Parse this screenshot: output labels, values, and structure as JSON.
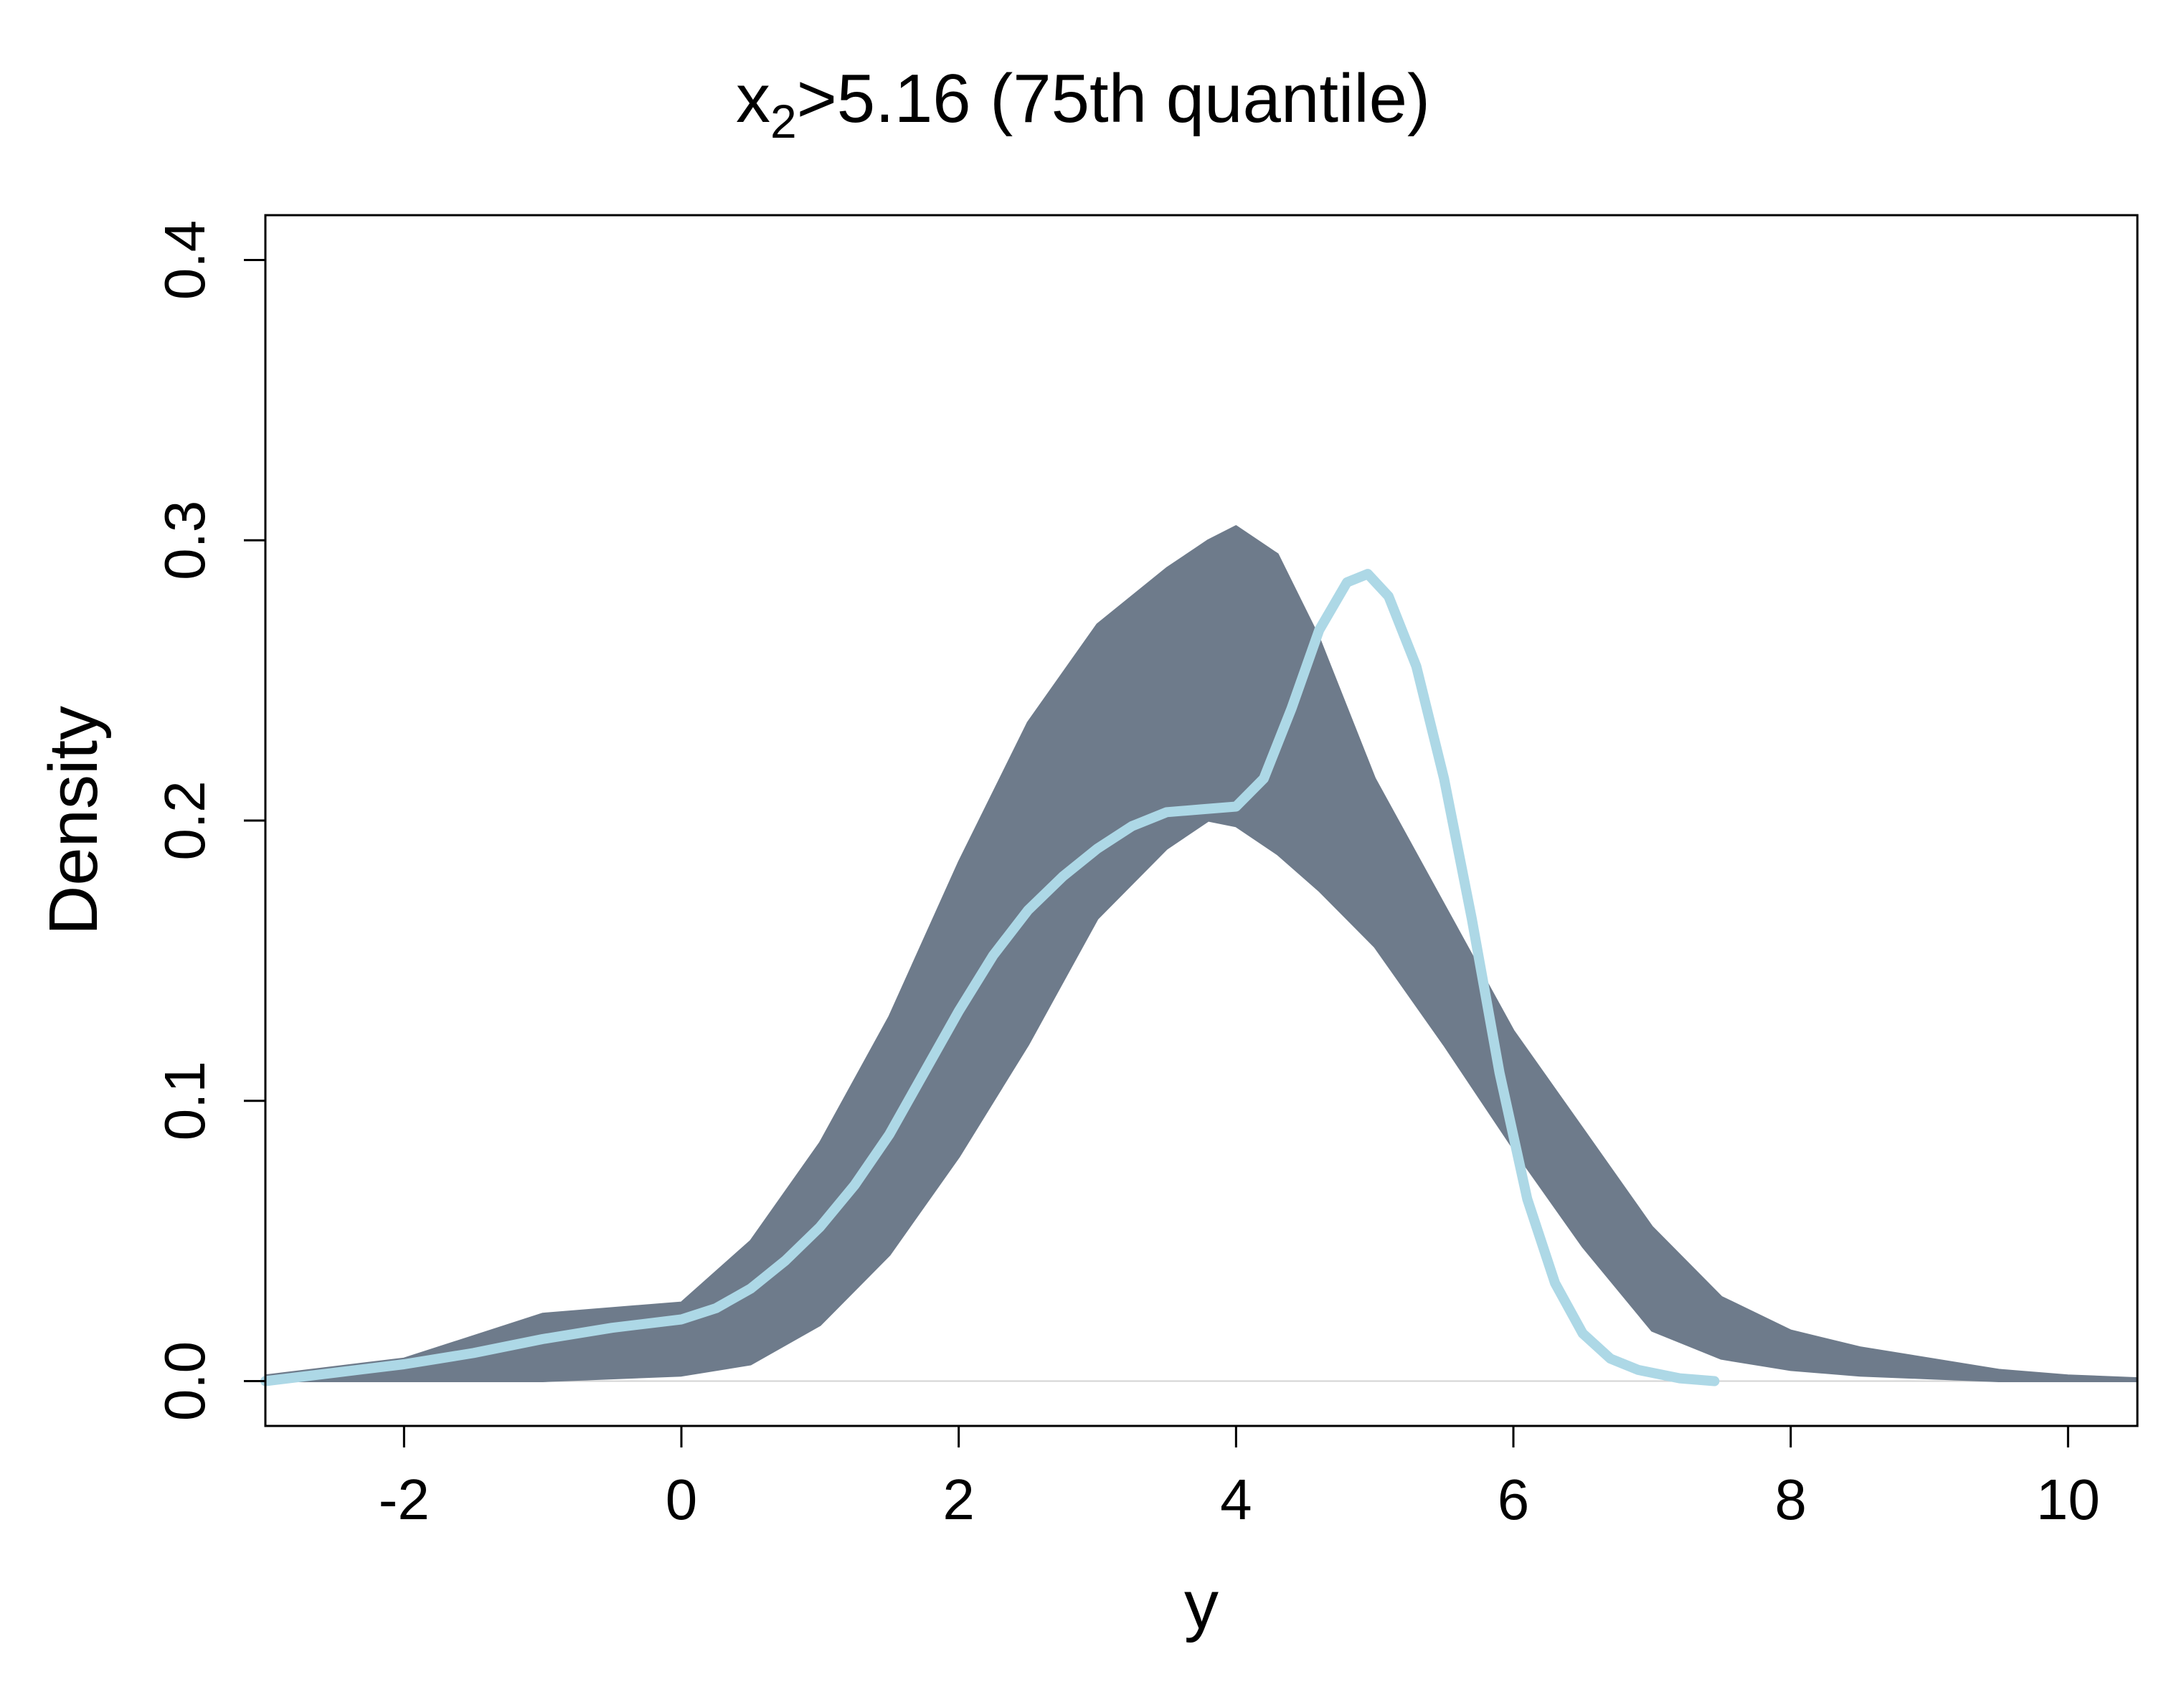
{
  "chart_data": {
    "type": "line",
    "title_main": "x",
    "title_sub": "2",
    "title_rest": ">5.16 (75th quantile)",
    "xlabel": "y",
    "ylabel": "Density",
    "xlim": [
      -3,
      10.5
    ],
    "ylim": [
      -0.016,
      0.416
    ],
    "x_ticks": [
      -2,
      0,
      2,
      4,
      6,
      8,
      10
    ],
    "y_ticks": [
      0.0,
      0.1,
      0.2,
      0.3,
      0.4
    ],
    "x_tick_labels": [
      "-2",
      "0",
      "2",
      "4",
      "6",
      "8",
      "10"
    ],
    "y_tick_labels": [
      "0.0",
      "0.1",
      "0.2",
      "0.3",
      "0.4"
    ],
    "grid": false,
    "legend": "none",
    "colors": {
      "band": "#6e7b8b",
      "observed": "#add8e6",
      "baseline": "#d3d3d3"
    },
    "band": {
      "name": "",
      "x": [
        -3.0,
        -2.0,
        -1.0,
        0.0,
        0.5,
        1.0,
        1.5,
        2.0,
        2.5,
        3.0,
        3.5,
        3.8,
        4.0,
        4.3,
        4.6,
        5.0,
        5.5,
        6.0,
        6.5,
        7.0,
        7.5,
        8.0,
        8.5,
        9.0,
        9.5,
        10.0,
        10.5
      ],
      "lower": [
        0.0,
        0.0,
        0.0,
        0.002,
        0.006,
        0.02,
        0.045,
        0.08,
        0.12,
        0.165,
        0.19,
        0.2,
        0.198,
        0.188,
        0.175,
        0.155,
        0.12,
        0.083,
        0.048,
        0.018,
        0.008,
        0.004,
        0.002,
        0.001,
        0.0,
        0.0,
        0.0
      ],
      "upper": [
        0.002,
        0.008,
        0.024,
        0.028,
        0.05,
        0.085,
        0.13,
        0.185,
        0.235,
        0.27,
        0.29,
        0.3,
        0.305,
        0.295,
        0.265,
        0.215,
        0.17,
        0.125,
        0.09,
        0.055,
        0.03,
        0.018,
        0.012,
        0.008,
        0.004,
        0.002,
        0.001
      ]
    },
    "series": [
      {
        "name": "",
        "x": [
          -3.0,
          -2.5,
          -2.0,
          -1.5,
          -1.0,
          -0.5,
          0.0,
          0.25,
          0.5,
          0.75,
          1.0,
          1.25,
          1.5,
          1.75,
          2.0,
          2.25,
          2.5,
          2.75,
          3.0,
          3.25,
          3.5,
          3.75,
          4.0,
          4.2,
          4.4,
          4.6,
          4.8,
          4.95,
          5.1,
          5.3,
          5.5,
          5.7,
          5.9,
          6.1,
          6.3,
          6.5,
          6.7,
          6.9,
          7.2,
          7.45
        ],
        "y": [
          0.0,
          0.003,
          0.006,
          0.01,
          0.015,
          0.019,
          0.022,
          0.026,
          0.033,
          0.043,
          0.055,
          0.07,
          0.088,
          0.11,
          0.132,
          0.152,
          0.168,
          0.18,
          0.19,
          0.198,
          0.203,
          0.204,
          0.205,
          0.215,
          0.24,
          0.268,
          0.285,
          0.288,
          0.28,
          0.255,
          0.215,
          0.165,
          0.11,
          0.065,
          0.035,
          0.017,
          0.008,
          0.004,
          0.001,
          0.0
        ]
      }
    ]
  }
}
